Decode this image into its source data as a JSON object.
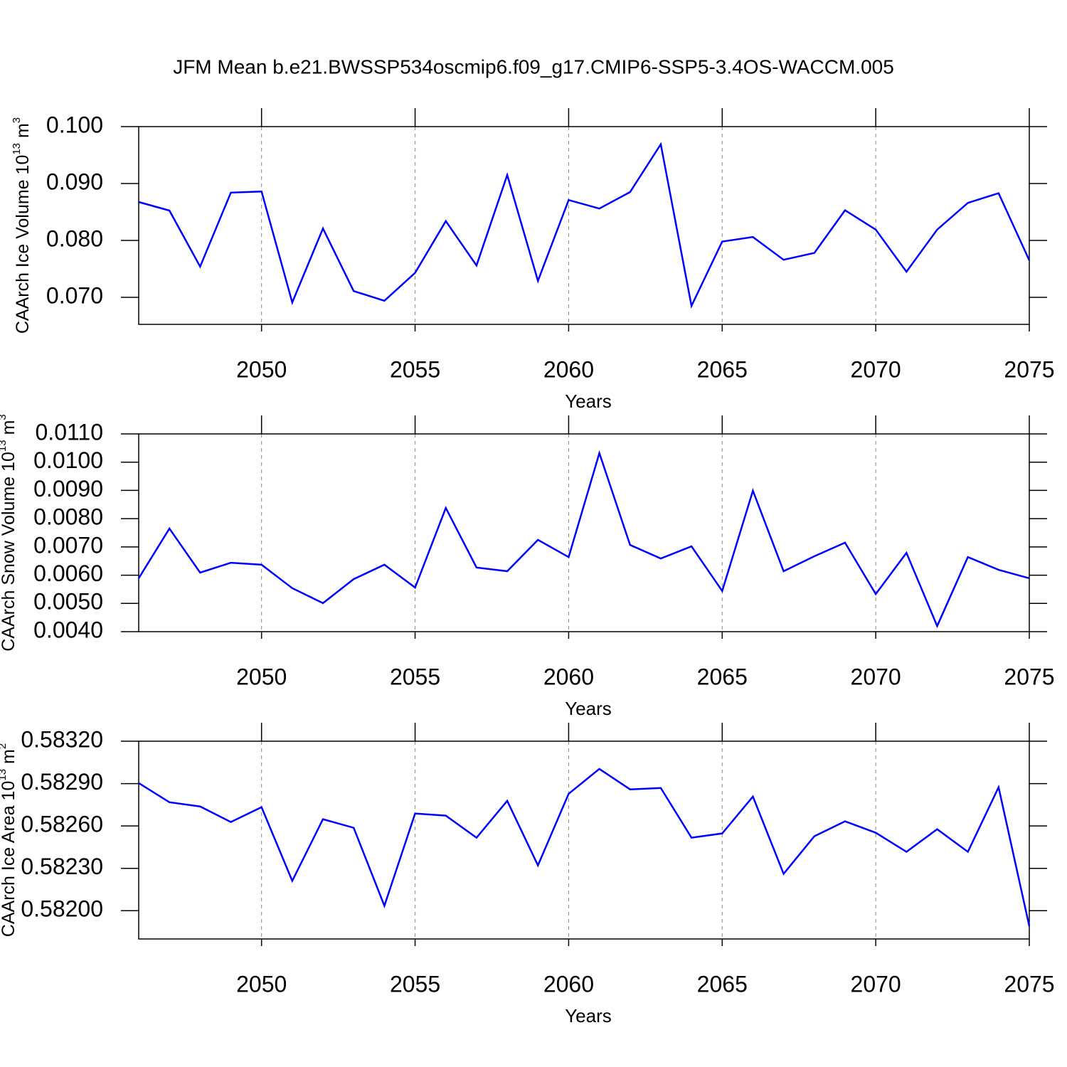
{
  "title": "JFM Mean b.e21.BWSSP534oscmip6.f09_g17.CMIP6-SSP5-3.4OS-WACCM.005",
  "chart_data": [
    {
      "type": "line",
      "ylabel": [
        {
          "text": "CAArch Ice Volume 10"
        },
        {
          "sup": "13"
        },
        {
          "text": " m"
        },
        {
          "sup": "3"
        }
      ],
      "xlabel": "Years",
      "x": [
        2046,
        2047,
        2048,
        2049,
        2050,
        2051,
        2052,
        2053,
        2054,
        2055,
        2056,
        2057,
        2058,
        2059,
        2060,
        2061,
        2062,
        2063,
        2064,
        2065,
        2066,
        2067,
        2068,
        2069,
        2070,
        2071,
        2072,
        2073,
        2074,
        2075
      ],
      "series": [
        {
          "color": "#0000ff",
          "values": [
            0.08675,
            0.08525,
            0.0754,
            0.0884,
            0.0886,
            0.0691,
            0.0821,
            0.0711,
            0.0694,
            0.0743,
            0.0834,
            0.0756,
            0.0915,
            0.0729,
            0.0871,
            0.0856,
            0.0885,
            0.0969,
            0.0685,
            0.0798,
            0.0806,
            0.0766,
            0.0778,
            0.0853,
            0.0819,
            0.0745,
            0.0819,
            0.0866,
            0.0883,
            0.0765
          ]
        }
      ],
      "xlim": [
        2046,
        2075
      ],
      "xticks": [
        2050,
        2055,
        2060,
        2065,
        2070,
        2075
      ],
      "ylim": [
        0.06525,
        0.1
      ],
      "yticks": [
        {
          "value": 0.07,
          "label": "0.070"
        },
        {
          "value": 0.08,
          "label": "0.080"
        },
        {
          "value": 0.09,
          "label": "0.090"
        },
        {
          "value": 0.1,
          "label": "0.100"
        }
      ],
      "grid": true
    },
    {
      "type": "line",
      "ylabel": [
        {
          "text": "CAArch Snow Volume 10"
        },
        {
          "sup": "13"
        },
        {
          "text": " m"
        },
        {
          "sup": "3"
        }
      ],
      "xlabel": "Years",
      "x": [
        2046,
        2047,
        2048,
        2049,
        2050,
        2051,
        2052,
        2053,
        2054,
        2055,
        2056,
        2057,
        2058,
        2059,
        2060,
        2061,
        2062,
        2063,
        2064,
        2065,
        2066,
        2067,
        2068,
        2069,
        2070,
        2071,
        2072,
        2073,
        2074,
        2075
      ],
      "series": [
        {
          "color": "#0000ff",
          "values": [
            0.00589,
            0.00765,
            0.00609,
            0.00644,
            0.00637,
            0.00554,
            0.00501,
            0.00586,
            0.00637,
            0.00556,
            0.00838,
            0.00627,
            0.00614,
            0.00725,
            0.00664,
            0.01032,
            0.00707,
            0.00659,
            0.00702,
            0.00544,
            0.00899,
            0.00614,
            0.00667,
            0.00715,
            0.00533,
            0.00679,
            0.0042,
            0.00664,
            0.00619,
            0.00589
          ]
        }
      ],
      "xlim": [
        2046,
        2075
      ],
      "xticks": [
        2050,
        2055,
        2060,
        2065,
        2070,
        2075
      ],
      "ylim": [
        0.004,
        0.011
      ],
      "yticks": [
        {
          "value": 0.004,
          "label": "0.0040"
        },
        {
          "value": 0.005,
          "label": "0.0050"
        },
        {
          "value": 0.006,
          "label": "0.0060"
        },
        {
          "value": 0.007,
          "label": "0.0070"
        },
        {
          "value": 0.008,
          "label": "0.0080"
        },
        {
          "value": 0.009,
          "label": "0.0090"
        },
        {
          "value": 0.01,
          "label": "0.0100"
        },
        {
          "value": 0.011,
          "label": "0.0110"
        }
      ],
      "grid": true
    },
    {
      "type": "line",
      "ylabel": [
        {
          "text": "CAArch Ice Area 10"
        },
        {
          "sup": "13"
        },
        {
          "text": " m"
        },
        {
          "sup": "2"
        }
      ],
      "xlabel": "Years",
      "x": [
        2046,
        2047,
        2048,
        2049,
        2050,
        2051,
        2052,
        2053,
        2054,
        2055,
        2056,
        2057,
        2058,
        2059,
        2060,
        2061,
        2062,
        2063,
        2064,
        2065,
        2066,
        2067,
        2068,
        2069,
        2070,
        2071,
        2072,
        2073,
        2074,
        2075
      ],
      "series": [
        {
          "color": "#0000ff",
          "values": [
            0.582904,
            0.582768,
            0.582738,
            0.582628,
            0.582733,
            0.582211,
            0.582648,
            0.582587,
            0.582035,
            0.582688,
            0.582673,
            0.582517,
            0.582778,
            0.582321,
            0.582828,
            0.583004,
            0.582859,
            0.582869,
            0.582517,
            0.582547,
            0.582808,
            0.582261,
            0.582527,
            0.582633,
            0.582552,
            0.582417,
            0.582577,
            0.582417,
            0.582874,
            0.58189
          ]
        }
      ],
      "xlim": [
        2046,
        2075
      ],
      "xticks": [
        2050,
        2055,
        2060,
        2065,
        2070,
        2075
      ],
      "ylim": [
        0.5818,
        0.5832
      ],
      "yticks": [
        {
          "value": 0.582,
          "label": "0.58200"
        },
        {
          "value": 0.5823,
          "label": "0.58230"
        },
        {
          "value": 0.5826,
          "label": "0.58260"
        },
        {
          "value": 0.5829,
          "label": "0.58290"
        },
        {
          "value": 0.5832,
          "label": "0.58320"
        }
      ],
      "grid": true
    }
  ]
}
